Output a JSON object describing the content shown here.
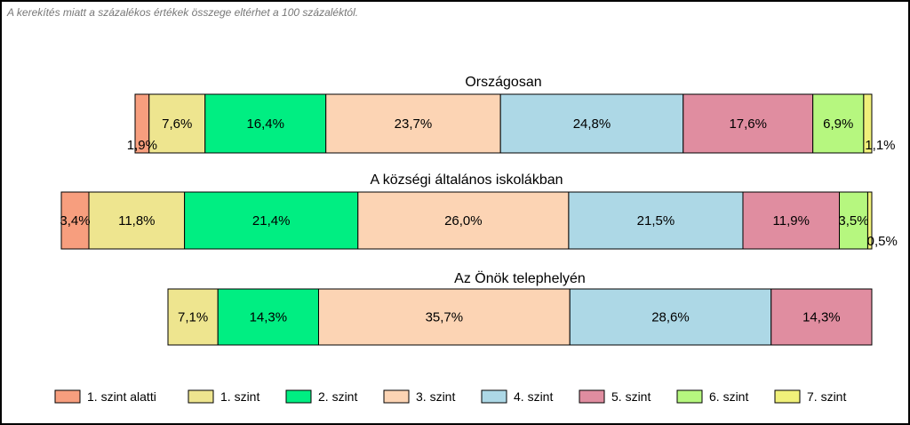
{
  "note": "A kerekítés miatt a  százalékos értékek összege eltérhet a 100 százaléktól.",
  "chart_data": {
    "type": "bar",
    "orientation": "horizontal",
    "stacked": true,
    "categories": [
      "1. szint alatti",
      "1. szint",
      "2. szint",
      "3. szint",
      "4. szint",
      "5. szint",
      "6. szint",
      "7. szint"
    ],
    "colors": [
      "#F79E7E",
      "#EEE58F",
      "#00EE82",
      "#FCD4B4",
      "#ADD8E6",
      "#E08DA0",
      "#B6F77F",
      "#F0F07A"
    ],
    "groups": [
      {
        "title": "Országosan",
        "values": [
          1.9,
          7.6,
          16.4,
          23.7,
          24.8,
          17.6,
          6.9,
          1.1
        ],
        "labels": [
          "1,9%",
          "7,6%",
          "16,4%",
          "23,7%",
          "24,8%",
          "17,6%",
          "6,9%",
          "1,1%"
        ]
      },
      {
        "title": "A községi általános iskolákban",
        "values": [
          3.4,
          11.8,
          21.4,
          26.0,
          21.5,
          11.9,
          3.5,
          0.5
        ],
        "labels": [
          "3,4%",
          "11,8%",
          "21,4%",
          "26,0%",
          "21,5%",
          "11,9%",
          "3,5%",
          "0,5%"
        ]
      },
      {
        "title": "Az Önök telephelyén",
        "values": [
          0,
          7.1,
          14.3,
          35.7,
          28.6,
          14.3,
          0,
          0
        ],
        "labels": [
          "",
          "7,1%",
          "14,3%",
          "35,7%",
          "28,6%",
          "14,3%",
          "",
          ""
        ]
      }
    ],
    "legend_position": "bottom",
    "grid": false
  }
}
